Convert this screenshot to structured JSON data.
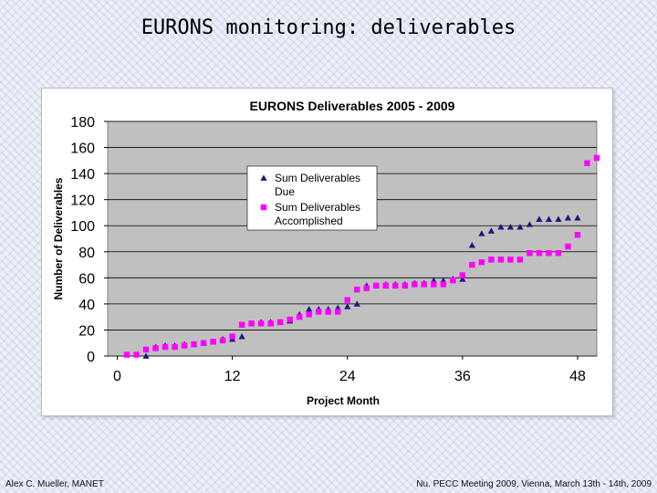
{
  "slide": {
    "title": "EURONS monitoring: deliverables",
    "footer_left": "Alex C. Mueller, MANET",
    "footer_right": "Nu. PECC Meeting 2009, Vienna, March 13th - 14th, 2009"
  },
  "colors": {
    "plot_bg": "#c0c0c0",
    "due": "#1a1a80",
    "accomplished": "#ff00ff"
  },
  "chart_data": {
    "type": "scatter",
    "title": "EURONS Deliverables 2005 - 2009",
    "xlabel": "Project Month",
    "ylabel": "Number of Deliverables",
    "xlim": [
      -1,
      50
    ],
    "ylim": [
      0,
      180
    ],
    "xticks": [
      0,
      12,
      24,
      36,
      48
    ],
    "yticks": [
      0,
      20,
      40,
      60,
      80,
      100,
      120,
      140,
      160,
      180
    ],
    "legend_position": "center-left",
    "series": [
      {
        "name": "Sum Deliverables Due",
        "marker": "triangle",
        "x": [
          3,
          4,
          5,
          6,
          7,
          8,
          9,
          10,
          11,
          12,
          13,
          14,
          15,
          16,
          17,
          18,
          19,
          20,
          21,
          22,
          23,
          24,
          25,
          26,
          27,
          28,
          29,
          30,
          31,
          32,
          33,
          34,
          35,
          36,
          37,
          38,
          39,
          40,
          41,
          42,
          43,
          44,
          45,
          46,
          47,
          48
        ],
        "y": [
          0,
          7,
          8,
          8,
          9,
          9,
          10,
          11,
          13,
          13,
          15,
          25,
          26,
          26,
          26,
          27,
          32,
          36,
          36,
          36,
          37,
          38,
          40,
          54,
          54,
          55,
          55,
          55,
          56,
          56,
          58,
          58,
          59,
          59,
          85,
          94,
          96,
          99,
          99,
          99,
          101,
          105,
          105,
          105,
          106,
          106
        ]
      },
      {
        "name": "Sum Deliverables Accomplished",
        "marker": "square",
        "x": [
          1,
          2,
          3,
          4,
          5,
          6,
          7,
          8,
          9,
          10,
          11,
          12,
          13,
          14,
          15,
          16,
          17,
          18,
          19,
          20,
          21,
          22,
          23,
          24,
          25,
          26,
          27,
          28,
          29,
          30,
          31,
          32,
          33,
          34,
          35,
          36,
          37,
          38,
          39,
          40,
          41,
          42,
          43,
          44,
          45,
          46,
          47,
          48,
          49,
          50
        ],
        "y": [
          1,
          1,
          5,
          6,
          7,
          7,
          8,
          9,
          10,
          11,
          12,
          15,
          24,
          25,
          25,
          25,
          26,
          28,
          30,
          32,
          34,
          34,
          34,
          43,
          51,
          52,
          54,
          54,
          54,
          54,
          55,
          55,
          55,
          55,
          58,
          62,
          70,
          72,
          74,
          74,
          74,
          74,
          79,
          79,
          79,
          79,
          84,
          93,
          148,
          152
        ]
      }
    ]
  }
}
